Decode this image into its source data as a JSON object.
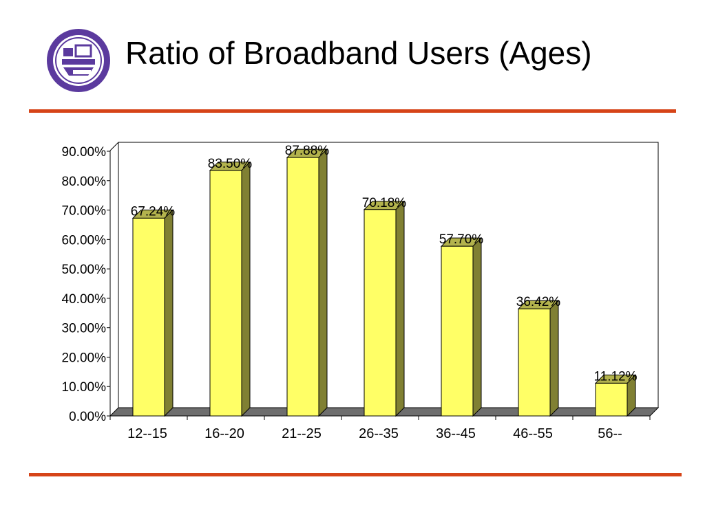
{
  "slide": {
    "title": "Ratio of Broadband Users (Ages)",
    "logo": {
      "icon": "university-seal-icon",
      "color": "#5b3a9e"
    }
  },
  "colors": {
    "accent_rule": "#d64418",
    "bar_front": "#ffff66",
    "bar_side": "#808033",
    "bar_top": "#b3b34d",
    "floor": "#6e6e6e"
  },
  "chart_data": {
    "type": "bar",
    "categories": [
      "12--15",
      "16--20",
      "21--25",
      "26--35",
      "36--45",
      "46--55",
      "56--"
    ],
    "values": [
      67.24,
      83.5,
      87.88,
      70.18,
      57.7,
      36.42,
      11.12
    ],
    "data_labels": [
      "67.24%",
      "83.50%",
      "87.88%",
      "70.18%",
      "57.70%",
      "36.42%",
      "11.12%"
    ],
    "y_ticks": [
      "0.00%",
      "10.00%",
      "20.00%",
      "30.00%",
      "40.00%",
      "50.00%",
      "60.00%",
      "70.00%",
      "80.00%",
      "90.00%"
    ],
    "title": "",
    "xlabel": "",
    "ylabel": "",
    "ylim": [
      0,
      90
    ],
    "grid": false,
    "legend": "none",
    "style": "3d"
  }
}
